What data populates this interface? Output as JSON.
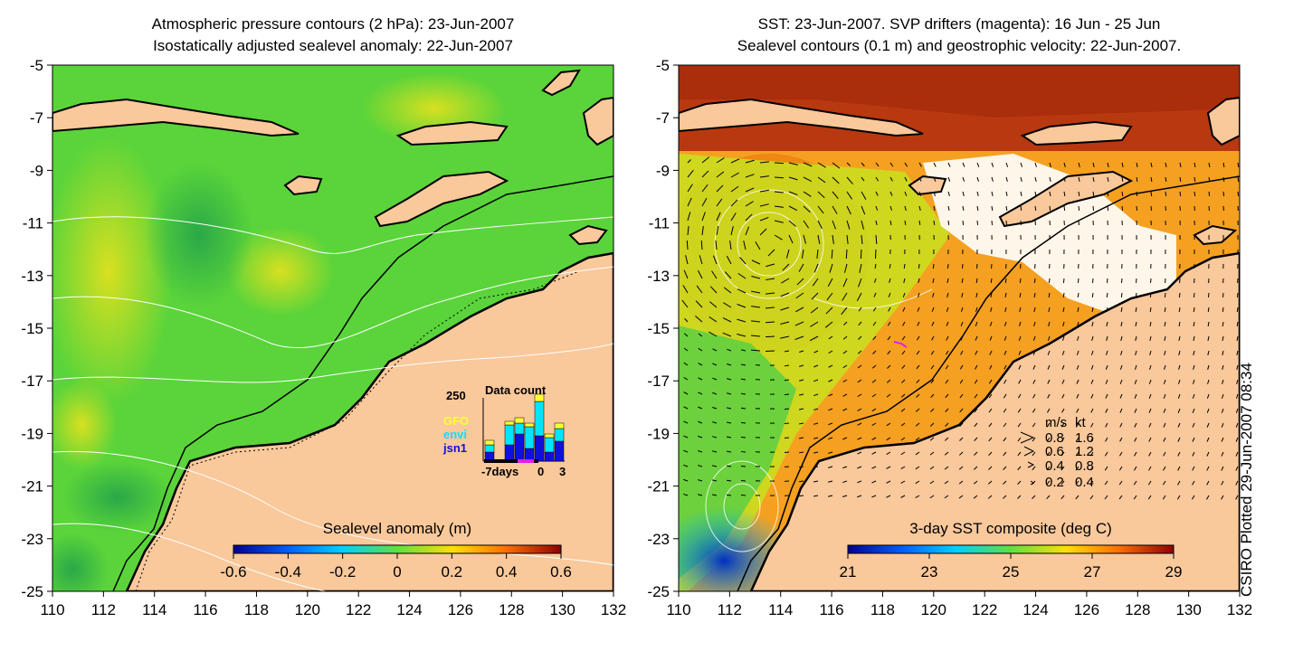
{
  "left_panel": {
    "title_line1": "Atmospheric pressure contours (2 hPa): 23-Jun-2007",
    "title_line2": "Isostatically adjusted sealevel anomaly: 22-Jun-2007",
    "colorbar_title": "Sealevel anomaly (m)",
    "colorbar_ticks": [
      "-0.6",
      "-0.4",
      "-0.2",
      "0",
      "0.2",
      "0.4",
      "0.6"
    ],
    "inset": {
      "title": "Data count",
      "ymax_label": "250",
      "legend": [
        {
          "name": "GFO",
          "color": "#ffff33"
        },
        {
          "name": "envi",
          "color": "#00e5ff"
        },
        {
          "name": "jsn1",
          "color": "#1010dd"
        }
      ],
      "x_labels": [
        "-7days",
        "0",
        "3"
      ]
    }
  },
  "right_panel": {
    "title_line1": "SST: 23-Jun-2007. SVP drifters (magenta): 16 Jun - 25 Jun",
    "title_line2": "Sealevel contours (0.1 m) and geostrophic velocity: 22-Jun-2007.",
    "colorbar_title": "3-day SST composite (deg C)",
    "colorbar_ticks": [
      "21",
      "23",
      "25",
      "27",
      "29"
    ],
    "velocity_legend": {
      "header_ms": "m/s",
      "header_kt": "kt",
      "rows": [
        {
          "ms": "0.8",
          "kt": "1.6"
        },
        {
          "ms": "0.6",
          "kt": "1.2"
        },
        {
          "ms": "0.4",
          "kt": "0.8"
        },
        {
          "ms": "0.2",
          "kt": "0.4"
        }
      ]
    }
  },
  "axes": {
    "x_ticks": [
      "110",
      "112",
      "114",
      "116",
      "118",
      "120",
      "122",
      "124",
      "126",
      "128",
      "130",
      "132"
    ],
    "y_ticks": [
      "-5",
      "-7",
      "-9",
      "-11",
      "-13",
      "-15",
      "-17",
      "-19",
      "-21",
      "-23",
      "-25"
    ]
  },
  "side_note": "CSIRO Plotted 29-Jun-2007 08:34",
  "colors": {
    "land": "#f9c89b",
    "sla_green": "#5ad43a",
    "sst_orange": "#f5a020"
  }
}
